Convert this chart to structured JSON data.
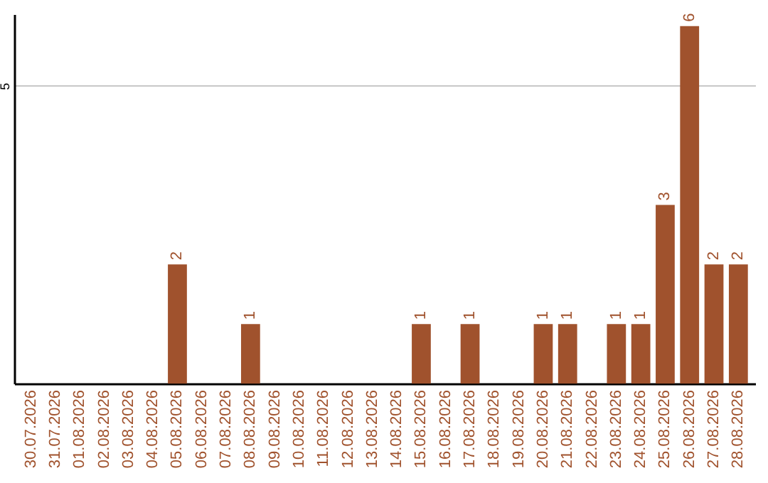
{
  "chart_data": {
    "type": "bar",
    "categories": [
      "30.07.2026",
      "31.07.2026",
      "01.08.2026",
      "02.08.2026",
      "03.08.2026",
      "04.08.2026",
      "05.08.2026",
      "06.08.2026",
      "07.08.2026",
      "08.08.2026",
      "09.08.2026",
      "10.08.2026",
      "11.08.2026",
      "12.08.2026",
      "13.08.2026",
      "14.08.2026",
      "15.08.2026",
      "16.08.2026",
      "17.08.2026",
      "18.08.2026",
      "19.08.2026",
      "20.08.2026",
      "21.08.2026",
      "22.08.2026",
      "23.08.2026",
      "24.08.2026",
      "25.08.2026",
      "26.08.2026",
      "27.08.2026",
      "28.08.2026"
    ],
    "values": [
      0,
      0,
      0,
      0,
      0,
      0,
      2,
      0,
      0,
      1,
      0,
      0,
      0,
      0,
      0,
      0,
      1,
      0,
      1,
      0,
      0,
      1,
      1,
      0,
      1,
      1,
      3,
      6,
      2,
      2
    ],
    "value_labels": [
      null,
      null,
      null,
      null,
      null,
      null,
      "2",
      null,
      null,
      "1",
      null,
      null,
      null,
      null,
      null,
      null,
      "1",
      null,
      "1",
      null,
      null,
      "1",
      "1",
      null,
      "1",
      "1",
      "3",
      "6",
      "2",
      "2"
    ],
    "color": "#a0522d",
    "ylim": [
      0,
      6.2
    ],
    "yticks": [
      5
    ],
    "grid": "y"
  }
}
